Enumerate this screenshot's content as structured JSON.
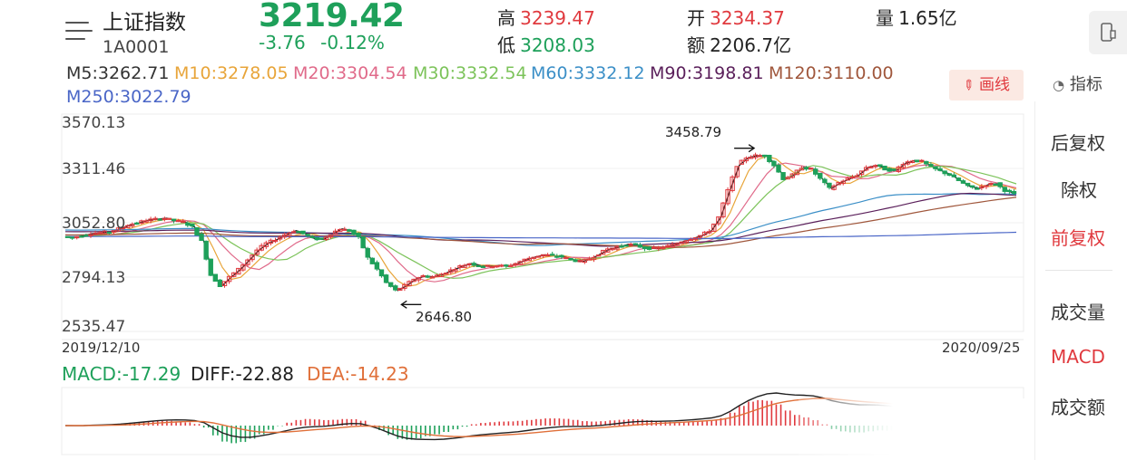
{
  "header": {
    "name": "上证指数",
    "code": "1A0001",
    "price": "3219.42",
    "change": "-3.76",
    "change_pct": "-0.12%",
    "high_label": "高",
    "high": "3239.47",
    "low_label": "低",
    "low": "3208.03",
    "open_label": "开",
    "open": "3234.37",
    "amount_label": "额",
    "amount": "2206.7亿",
    "volume_label": "量",
    "volume": "1.65亿"
  },
  "ma_legend": [
    {
      "label": "M5:3262.71",
      "color": "#222222"
    },
    {
      "label": "M10:3278.05",
      "color": "#e8a53a"
    },
    {
      "label": "M20:3304.54",
      "color": "#e06a8a"
    },
    {
      "label": "M30:3332.54",
      "color": "#7cc35a"
    },
    {
      "label": "M60:3332.12",
      "color": "#3b8fc7"
    },
    {
      "label": "M90:3198.81",
      "color": "#5a1f5a"
    },
    {
      "label": "M120:3110.00",
      "color": "#a0573c"
    },
    {
      "label": "M250:3022.79",
      "color": "#4a66c7"
    }
  ],
  "toolbar": {
    "draw_label": "画线",
    "indicator_label": "指标"
  },
  "side_menu": [
    {
      "label": "后复权",
      "active": false
    },
    {
      "label": "除权",
      "active": false
    },
    {
      "label": "前复权",
      "active": true
    },
    {
      "label": "成交量",
      "active": false
    },
    {
      "label": "MACD",
      "active": true
    },
    {
      "label": "成交额",
      "active": false
    }
  ],
  "chart_data": {
    "type": "candlestick",
    "y_ticks": [
      "3570.13",
      "3311.46",
      "3052.80",
      "2794.13",
      "2535.47"
    ],
    "ylim": [
      2535.47,
      3570.13
    ],
    "x_start": "2019/12/10",
    "x_end": "2020/09/25",
    "annotations": [
      {
        "text": "3458.79",
        "value": 3458.79,
        "arrow": "right"
      },
      {
        "text": "2646.80",
        "value": 2646.8,
        "arrow": "left"
      }
    ],
    "close_series": [
      3000,
      2995,
      3005,
      3015,
      3020,
      3025,
      3040,
      3060,
      3070,
      3085,
      3090,
      3095,
      3083,
      3075,
      3050,
      2976,
      2800,
      2745,
      2790,
      2830,
      2880,
      2930,
      2965,
      2985,
      3010,
      3030,
      3015,
      2990,
      2985,
      3015,
      3040,
      3030,
      2995,
      2890,
      2830,
      2760,
      2720,
      2745,
      2780,
      2795,
      2790,
      2805,
      2825,
      2845,
      2860,
      2850,
      2845,
      2850,
      2845,
      2860,
      2880,
      2895,
      2905,
      2900,
      2895,
      2880,
      2870,
      2885,
      2910,
      2935,
      2945,
      2960,
      2955,
      2940,
      2938,
      2945,
      2955,
      2975,
      2990,
      3005,
      3030,
      3100,
      3240,
      3370,
      3410,
      3420,
      3420,
      3370,
      3300,
      3320,
      3360,
      3350,
      3300,
      3250,
      3280,
      3300,
      3320,
      3360,
      3370,
      3350,
      3340,
      3380,
      3395,
      3390,
      3360,
      3340,
      3320,
      3290,
      3260,
      3250,
      3270,
      3275,
      3240,
      3220
    ],
    "macd": {
      "MACD": -17.29,
      "DIFF": -22.88,
      "DEA": -14.23
    }
  },
  "macd_legend": {
    "macd": "MACD:-17.29",
    "diff": "DIFF:-22.88",
    "dea": "DEA:-14.23",
    "macd_color": "#1ea05a",
    "diff_color": "#222222",
    "dea_color": "#e0703a"
  }
}
